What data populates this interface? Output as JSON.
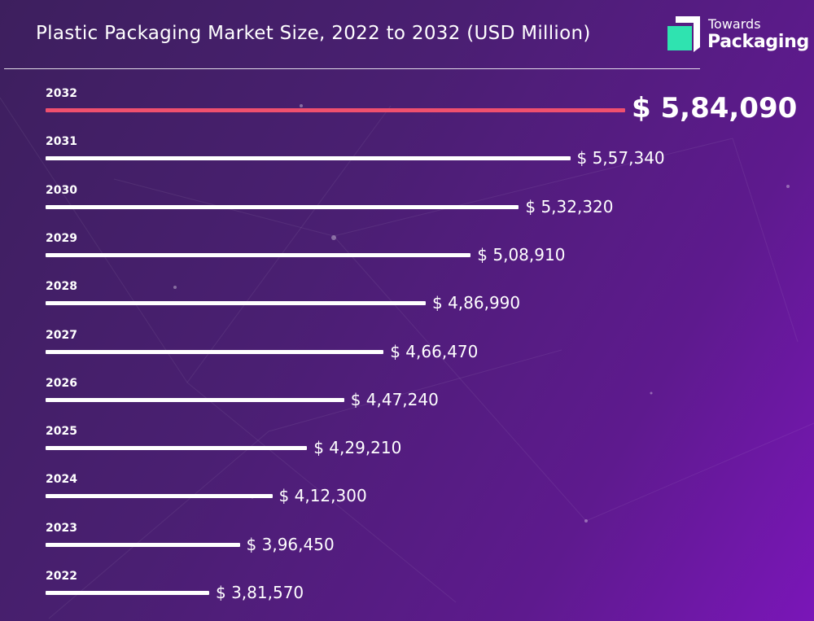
{
  "header": {
    "title": "Plastic Packaging Market Size, 2022 to 2032 (USD Million)"
  },
  "logo": {
    "line1": "Towards",
    "line2": "Packaging",
    "mark_color_front": "#2fe3b0",
    "mark_color_back": "#ffffff"
  },
  "colors": {
    "bar": "#ffffff",
    "highlight_bar": "#f0506e"
  },
  "chart_data": {
    "type": "bar",
    "orientation": "horizontal",
    "title": "Plastic Packaging Market Size, 2022 to 2032 (USD Million)",
    "categories": [
      "2032",
      "2031",
      "2030",
      "2029",
      "2028",
      "2027",
      "2026",
      "2025",
      "2024",
      "2023",
      "2022"
    ],
    "values": [
      584090,
      557340,
      532320,
      508910,
      486990,
      466470,
      447240,
      429210,
      412300,
      396450,
      381570
    ],
    "value_labels": [
      "$ 5,84,090",
      "$ 5,57,340",
      "$ 5,32,320",
      "$ 5,08,910",
      "$ 4,86,990",
      "$ 4,66,470",
      "$ 4,47,240",
      "$ 4,29,210",
      "$ 4,12,300",
      "$ 3,96,450",
      "$ 3,81,570"
    ],
    "highlight_category": "2032",
    "xlabel": "",
    "ylabel": "",
    "grid": false,
    "legend": "none"
  }
}
